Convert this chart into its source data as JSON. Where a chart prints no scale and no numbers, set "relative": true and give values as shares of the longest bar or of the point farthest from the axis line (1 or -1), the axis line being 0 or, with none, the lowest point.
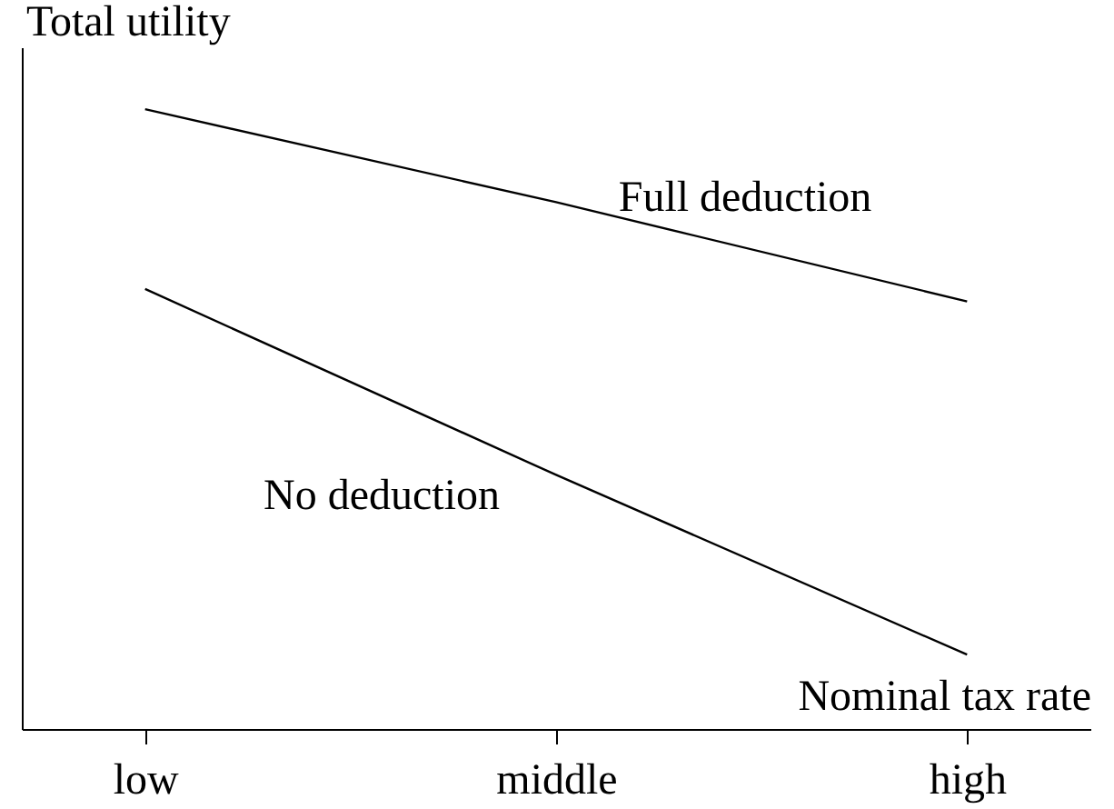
{
  "chart_data": {
    "type": "line",
    "relative": true,
    "xlabel": "Nominal tax rate",
    "ylabel": "Total utility",
    "categories": [
      "low",
      "middle",
      "high"
    ],
    "series": [
      {
        "name": "Full deduction",
        "color": "#000000",
        "values": [
          1,
          0.85,
          0.69
        ]
      },
      {
        "name": "No deduction",
        "color": "#000000",
        "values": [
          0.71,
          0.41,
          0.12
        ]
      }
    ],
    "grid": false,
    "marker": "none",
    "line_style": "solid",
    "tick_labels": "x"
  }
}
